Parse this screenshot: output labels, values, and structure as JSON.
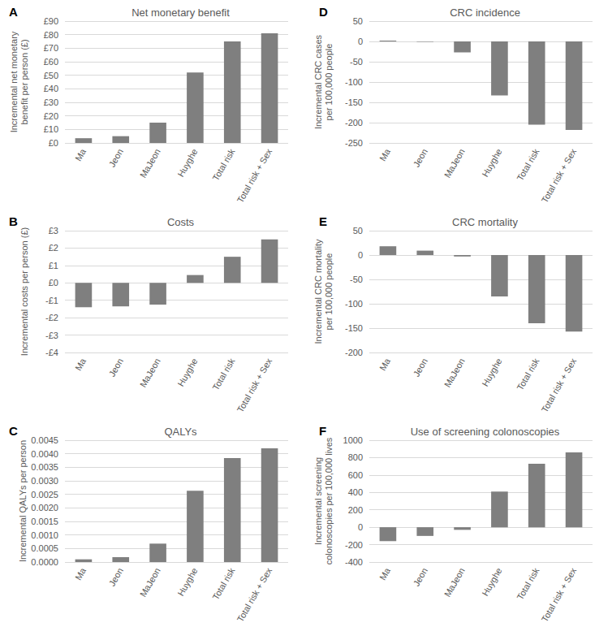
{
  "chart_data": [
    {
      "type": "bar",
      "panel": "A",
      "title": "Net monetary benefit",
      "y_label": "Incremental net monetary benefit per person (£)",
      "categories": [
        "Ma",
        "Jeon",
        "MaJeon",
        "Huyghe",
        "Total risk",
        "Total risk + Sex"
      ],
      "values": [
        3.5,
        5,
        15,
        52,
        75,
        81
      ],
      "color": "#7f7f7f",
      "ylim": [
        0,
        90
      ],
      "yticks": [
        {
          "value": 0,
          "label": "£0"
        },
        {
          "value": 10,
          "label": "£10"
        },
        {
          "value": 20,
          "label": "£20"
        },
        {
          "value": 30,
          "label": "£30"
        },
        {
          "value": 40,
          "label": "£40"
        },
        {
          "value": 50,
          "label": "£50"
        },
        {
          "value": 60,
          "label": "£60"
        },
        {
          "value": 70,
          "label": "£70"
        },
        {
          "value": 80,
          "label": "£80"
        },
        {
          "value": 90,
          "label": "£90"
        }
      ],
      "grid": true
    },
    {
      "type": "bar",
      "panel": "B",
      "title": "Costs",
      "y_label": "Incremental costs per person (£)",
      "categories": [
        "Ma",
        "Jeon",
        "MaJeon",
        "Huyghe",
        "Total risk",
        "Total risk + Sex"
      ],
      "values": [
        -1.4,
        -1.35,
        -1.25,
        0.45,
        1.5,
        2.5
      ],
      "color": "#7f7f7f",
      "ylim": [
        -4,
        3
      ],
      "yticks": [
        {
          "value": -4,
          "label": "-£4"
        },
        {
          "value": -3,
          "label": "-£3"
        },
        {
          "value": -2,
          "label": "-£2"
        },
        {
          "value": -1,
          "label": "-£1"
        },
        {
          "value": 0,
          "label": "£0"
        },
        {
          "value": 1,
          "label": "£1"
        },
        {
          "value": 2,
          "label": "£2"
        },
        {
          "value": 3,
          "label": "£3"
        }
      ],
      "grid": true
    },
    {
      "type": "bar",
      "panel": "C",
      "title": "QALYs",
      "y_label": "Incremental QALYs per person",
      "categories": [
        "Ma",
        "Jeon",
        "MaJeon",
        "Huyghe",
        "Total risk",
        "Total risk + Sex"
      ],
      "values": [
        0.0001,
        0.00018,
        0.00068,
        0.00263,
        0.00384,
        0.0042
      ],
      "color": "#7f7f7f",
      "ylim": [
        0,
        0.0045
      ],
      "yticks": [
        {
          "value": 0,
          "label": "0.0000"
        },
        {
          "value": 0.0005,
          "label": "0.0005"
        },
        {
          "value": 0.001,
          "label": "0.0010"
        },
        {
          "value": 0.0015,
          "label": "0.0015"
        },
        {
          "value": 0.002,
          "label": "0.0020"
        },
        {
          "value": 0.0025,
          "label": "0.0025"
        },
        {
          "value": 0.003,
          "label": "0.0030"
        },
        {
          "value": 0.0035,
          "label": "0.0035"
        },
        {
          "value": 0.004,
          "label": "0.0040"
        },
        {
          "value": 0.0045,
          "label": "0.0045"
        }
      ],
      "grid": true
    },
    {
      "type": "bar",
      "panel": "D",
      "title": "CRC incidence",
      "y_label": "Incremental CRC cases per 100,000 people",
      "categories": [
        "Ma",
        "Jeon",
        "MaJeon",
        "Huyghe",
        "Total risk",
        "Total risk + Sex"
      ],
      "values": [
        2,
        -1,
        -27,
        -133,
        -205,
        -218
      ],
      "color": "#7f7f7f",
      "ylim": [
        -250,
        50
      ],
      "yticks": [
        -250,
        -200,
        -150,
        -100,
        -50,
        0,
        50
      ],
      "grid": true
    },
    {
      "type": "bar",
      "panel": "E",
      "title": "CRC mortality",
      "y_label": "Incremental CRC mortality per 100,000 people",
      "categories": [
        "Ma",
        "Jeon",
        "MaJeon",
        "Huyghe",
        "Total risk",
        "Total risk + Sex"
      ],
      "values": [
        18,
        9,
        -3,
        -85,
        -140,
        -157
      ],
      "color": "#7f7f7f",
      "ylim": [
        -200,
        50
      ],
      "yticks": [
        -200,
        -150,
        -100,
        -50,
        0,
        50
      ],
      "grid": true
    },
    {
      "type": "bar",
      "panel": "F",
      "title": "Use of screening colonoscopies",
      "y_label": "Incremental screening colonoscopies per 100,000 lives",
      "categories": [
        "Ma",
        "Jeon",
        "MaJeon",
        "Huyghe",
        "Total risk",
        "Total risk + Sex"
      ],
      "values": [
        -160,
        -100,
        -30,
        410,
        730,
        860
      ],
      "color": "#7f7f7f",
      "ylim": [
        -400,
        1000
      ],
      "yticks": [
        -400,
        -200,
        0,
        200,
        400,
        600,
        800,
        1000
      ],
      "grid": true
    }
  ]
}
